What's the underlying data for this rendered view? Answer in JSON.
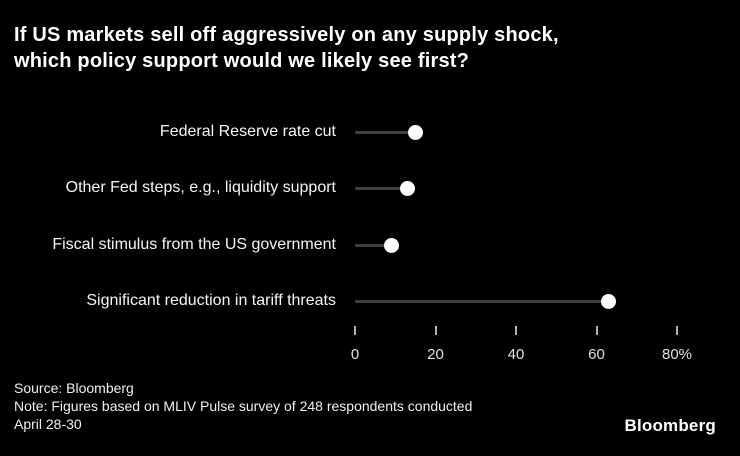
{
  "title": {
    "line1": "If US markets sell off aggressively on any supply shock,",
    "line2": "which policy support would we likely see first?"
  },
  "chart_data": {
    "type": "scatter",
    "subtype": "lollipop-dot",
    "title": "If US markets sell off aggressively on any supply shock, which policy support would we likely see first?",
    "categories": [
      "Federal Reserve rate cut",
      "Other Fed steps, e.g., liquidity support",
      "Fiscal stimulus from the US government",
      "Significant reduction in tariff threats"
    ],
    "values": [
      15,
      13,
      9,
      63
    ],
    "unit": "%",
    "xlabel": "",
    "ylabel": "",
    "xlim": [
      0,
      80
    ],
    "x_ticks": [
      0,
      20,
      40,
      60,
      80
    ],
    "x_tick_labels": [
      "0",
      "20",
      "40",
      "60",
      "80%"
    ],
    "grid": false,
    "legend": false,
    "colors": {
      "background": "#000000",
      "dot": "#ffffff",
      "stem": "#3f3f3f",
      "tick": "#b0b0b0",
      "tick_label": "#e0e0e0",
      "category_label": "#f5f5f5",
      "title_text": "#ffffff"
    }
  },
  "footer": {
    "lines": [
      "Source: Bloomberg",
      "Note: Figures based on MLIV Pulse survey of 248 respondents conducted",
      "April 28-30"
    ],
    "logo": "Bloomberg"
  }
}
